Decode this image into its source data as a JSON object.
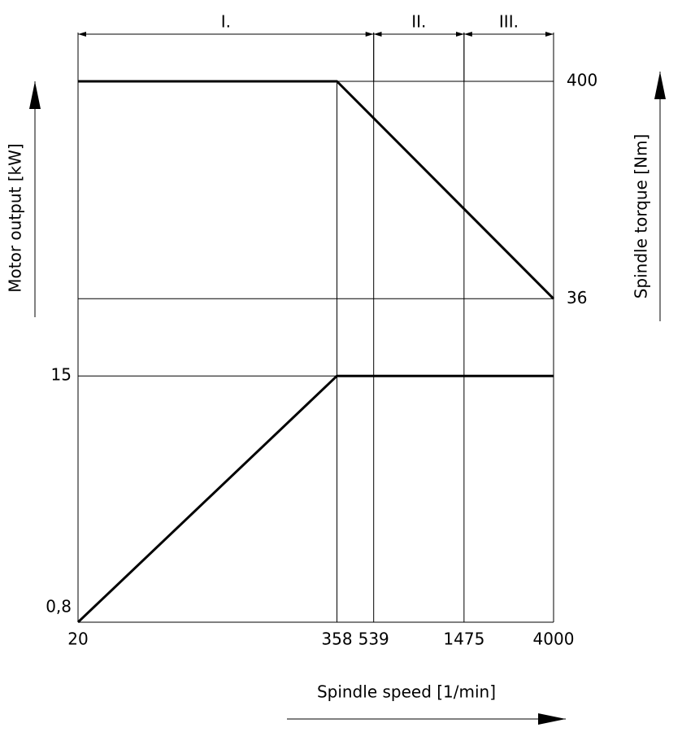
{
  "chart_data": {
    "type": "line",
    "xlabel": "Spindle speed [1/min]",
    "ylabel": "Motor output [kW]",
    "y2label": "Spindle torque [Nm]",
    "x": [
      20,
      358,
      4000
    ],
    "series": [
      {
        "name": "Motor output",
        "color": "#000000",
        "values": [
          0.8,
          15,
          15
        ]
      },
      {
        "name": "Spindle torque",
        "color": "#000000",
        "values": [
          400,
          400,
          36
        ],
        "axis": "y2"
      }
    ],
    "xlim": [
      20,
      4000
    ],
    "xticks": [
      20,
      358,
      539,
      1475,
      4000
    ],
    "xlog": true,
    "ylim": [
      0.8,
      500
    ],
    "yticks": [
      {
        "value": 0.8,
        "label": "0,8"
      },
      15
    ],
    "ylog": true,
    "y2lim": [
      1,
      400
    ],
    "y2ticks": [
      36,
      400
    ],
    "y2log": true,
    "ranges": [
      {
        "label": "I.",
        "from": 20,
        "to": 539
      },
      {
        "label": "II.",
        "from": 539,
        "to": 1475
      },
      {
        "label": "III.",
        "from": 1475,
        "to": 4000
      }
    ]
  }
}
